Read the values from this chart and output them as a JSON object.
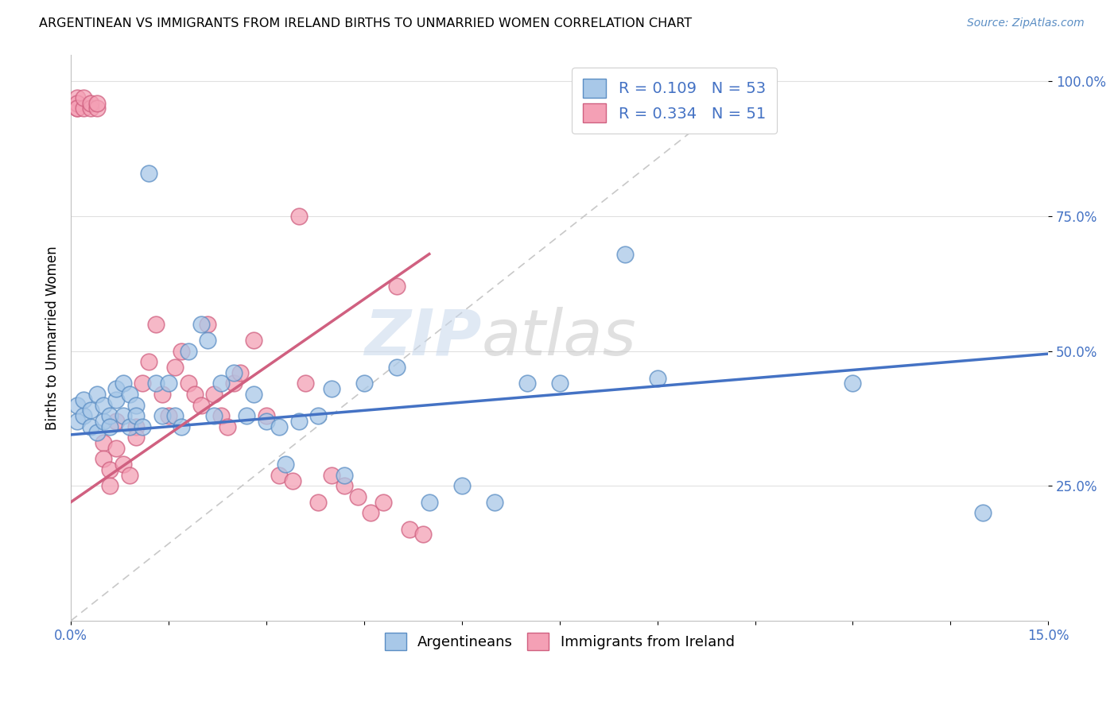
{
  "title": "ARGENTINEAN VS IMMIGRANTS FROM IRELAND BIRTHS TO UNMARRIED WOMEN CORRELATION CHART",
  "source": "Source: ZipAtlas.com",
  "ylabel": "Births to Unmarried Women",
  "xlim": [
    0.0,
    0.15
  ],
  "ylim": [
    0.0,
    1.05
  ],
  "xticks": [
    0.0,
    0.015,
    0.03,
    0.045,
    0.06,
    0.075,
    0.09,
    0.105,
    0.12,
    0.135,
    0.15
  ],
  "xticklabels": [
    "0.0%",
    "",
    "",
    "",
    "",
    "",
    "",
    "",
    "",
    "",
    "15.0%"
  ],
  "ytick_positions": [
    0.25,
    0.5,
    0.75,
    1.0
  ],
  "yticklabels": [
    "25.0%",
    "50.0%",
    "75.0%",
    "100.0%"
  ],
  "blue_color": "#A8C8E8",
  "pink_color": "#F4A0B5",
  "blue_edge_color": "#5B8EC4",
  "pink_edge_color": "#D06080",
  "blue_line_color": "#4472C4",
  "pink_line_color": "#D06080",
  "diag_line_color": "#C8C8C8",
  "legend_r_blue": "0.109",
  "legend_n_blue": "53",
  "legend_r_pink": "0.334",
  "legend_n_pink": "51",
  "watermark_zip": "ZIP",
  "watermark_atlas": "atlas",
  "blue_scatter_x": [
    0.001,
    0.001,
    0.002,
    0.002,
    0.003,
    0.003,
    0.004,
    0.004,
    0.005,
    0.005,
    0.006,
    0.006,
    0.007,
    0.007,
    0.008,
    0.008,
    0.009,
    0.009,
    0.01,
    0.01,
    0.011,
    0.012,
    0.013,
    0.014,
    0.015,
    0.016,
    0.017,
    0.018,
    0.02,
    0.021,
    0.022,
    0.023,
    0.025,
    0.027,
    0.028,
    0.03,
    0.032,
    0.033,
    0.035,
    0.038,
    0.04,
    0.042,
    0.045,
    0.05,
    0.055,
    0.06,
    0.065,
    0.07,
    0.075,
    0.085,
    0.09,
    0.12,
    0.14
  ],
  "blue_scatter_y": [
    0.37,
    0.4,
    0.38,
    0.41,
    0.36,
    0.39,
    0.35,
    0.42,
    0.37,
    0.4,
    0.38,
    0.36,
    0.41,
    0.43,
    0.44,
    0.38,
    0.42,
    0.36,
    0.4,
    0.38,
    0.36,
    0.83,
    0.44,
    0.38,
    0.44,
    0.38,
    0.36,
    0.5,
    0.55,
    0.52,
    0.38,
    0.44,
    0.46,
    0.38,
    0.42,
    0.37,
    0.36,
    0.29,
    0.37,
    0.38,
    0.43,
    0.27,
    0.44,
    0.47,
    0.22,
    0.25,
    0.22,
    0.44,
    0.44,
    0.68,
    0.45,
    0.44,
    0.2
  ],
  "pink_scatter_x": [
    0.001,
    0.001,
    0.001,
    0.001,
    0.002,
    0.002,
    0.003,
    0.003,
    0.004,
    0.004,
    0.005,
    0.005,
    0.006,
    0.006,
    0.007,
    0.007,
    0.008,
    0.009,
    0.01,
    0.01,
    0.011,
    0.012,
    0.013,
    0.014,
    0.015,
    0.016,
    0.017,
    0.018,
    0.019,
    0.02,
    0.021,
    0.022,
    0.023,
    0.024,
    0.025,
    0.026,
    0.028,
    0.03,
    0.032,
    0.034,
    0.035,
    0.036,
    0.038,
    0.04,
    0.042,
    0.044,
    0.046,
    0.048,
    0.05,
    0.052,
    0.054
  ],
  "pink_scatter_y": [
    0.95,
    0.97,
    0.96,
    0.95,
    0.95,
    0.97,
    0.95,
    0.96,
    0.95,
    0.96,
    0.33,
    0.3,
    0.28,
    0.25,
    0.37,
    0.32,
    0.29,
    0.27,
    0.36,
    0.34,
    0.44,
    0.48,
    0.55,
    0.42,
    0.38,
    0.47,
    0.5,
    0.44,
    0.42,
    0.4,
    0.55,
    0.42,
    0.38,
    0.36,
    0.44,
    0.46,
    0.52,
    0.38,
    0.27,
    0.26,
    0.75,
    0.44,
    0.22,
    0.27,
    0.25,
    0.23,
    0.2,
    0.22,
    0.62,
    0.17,
    0.16
  ]
}
